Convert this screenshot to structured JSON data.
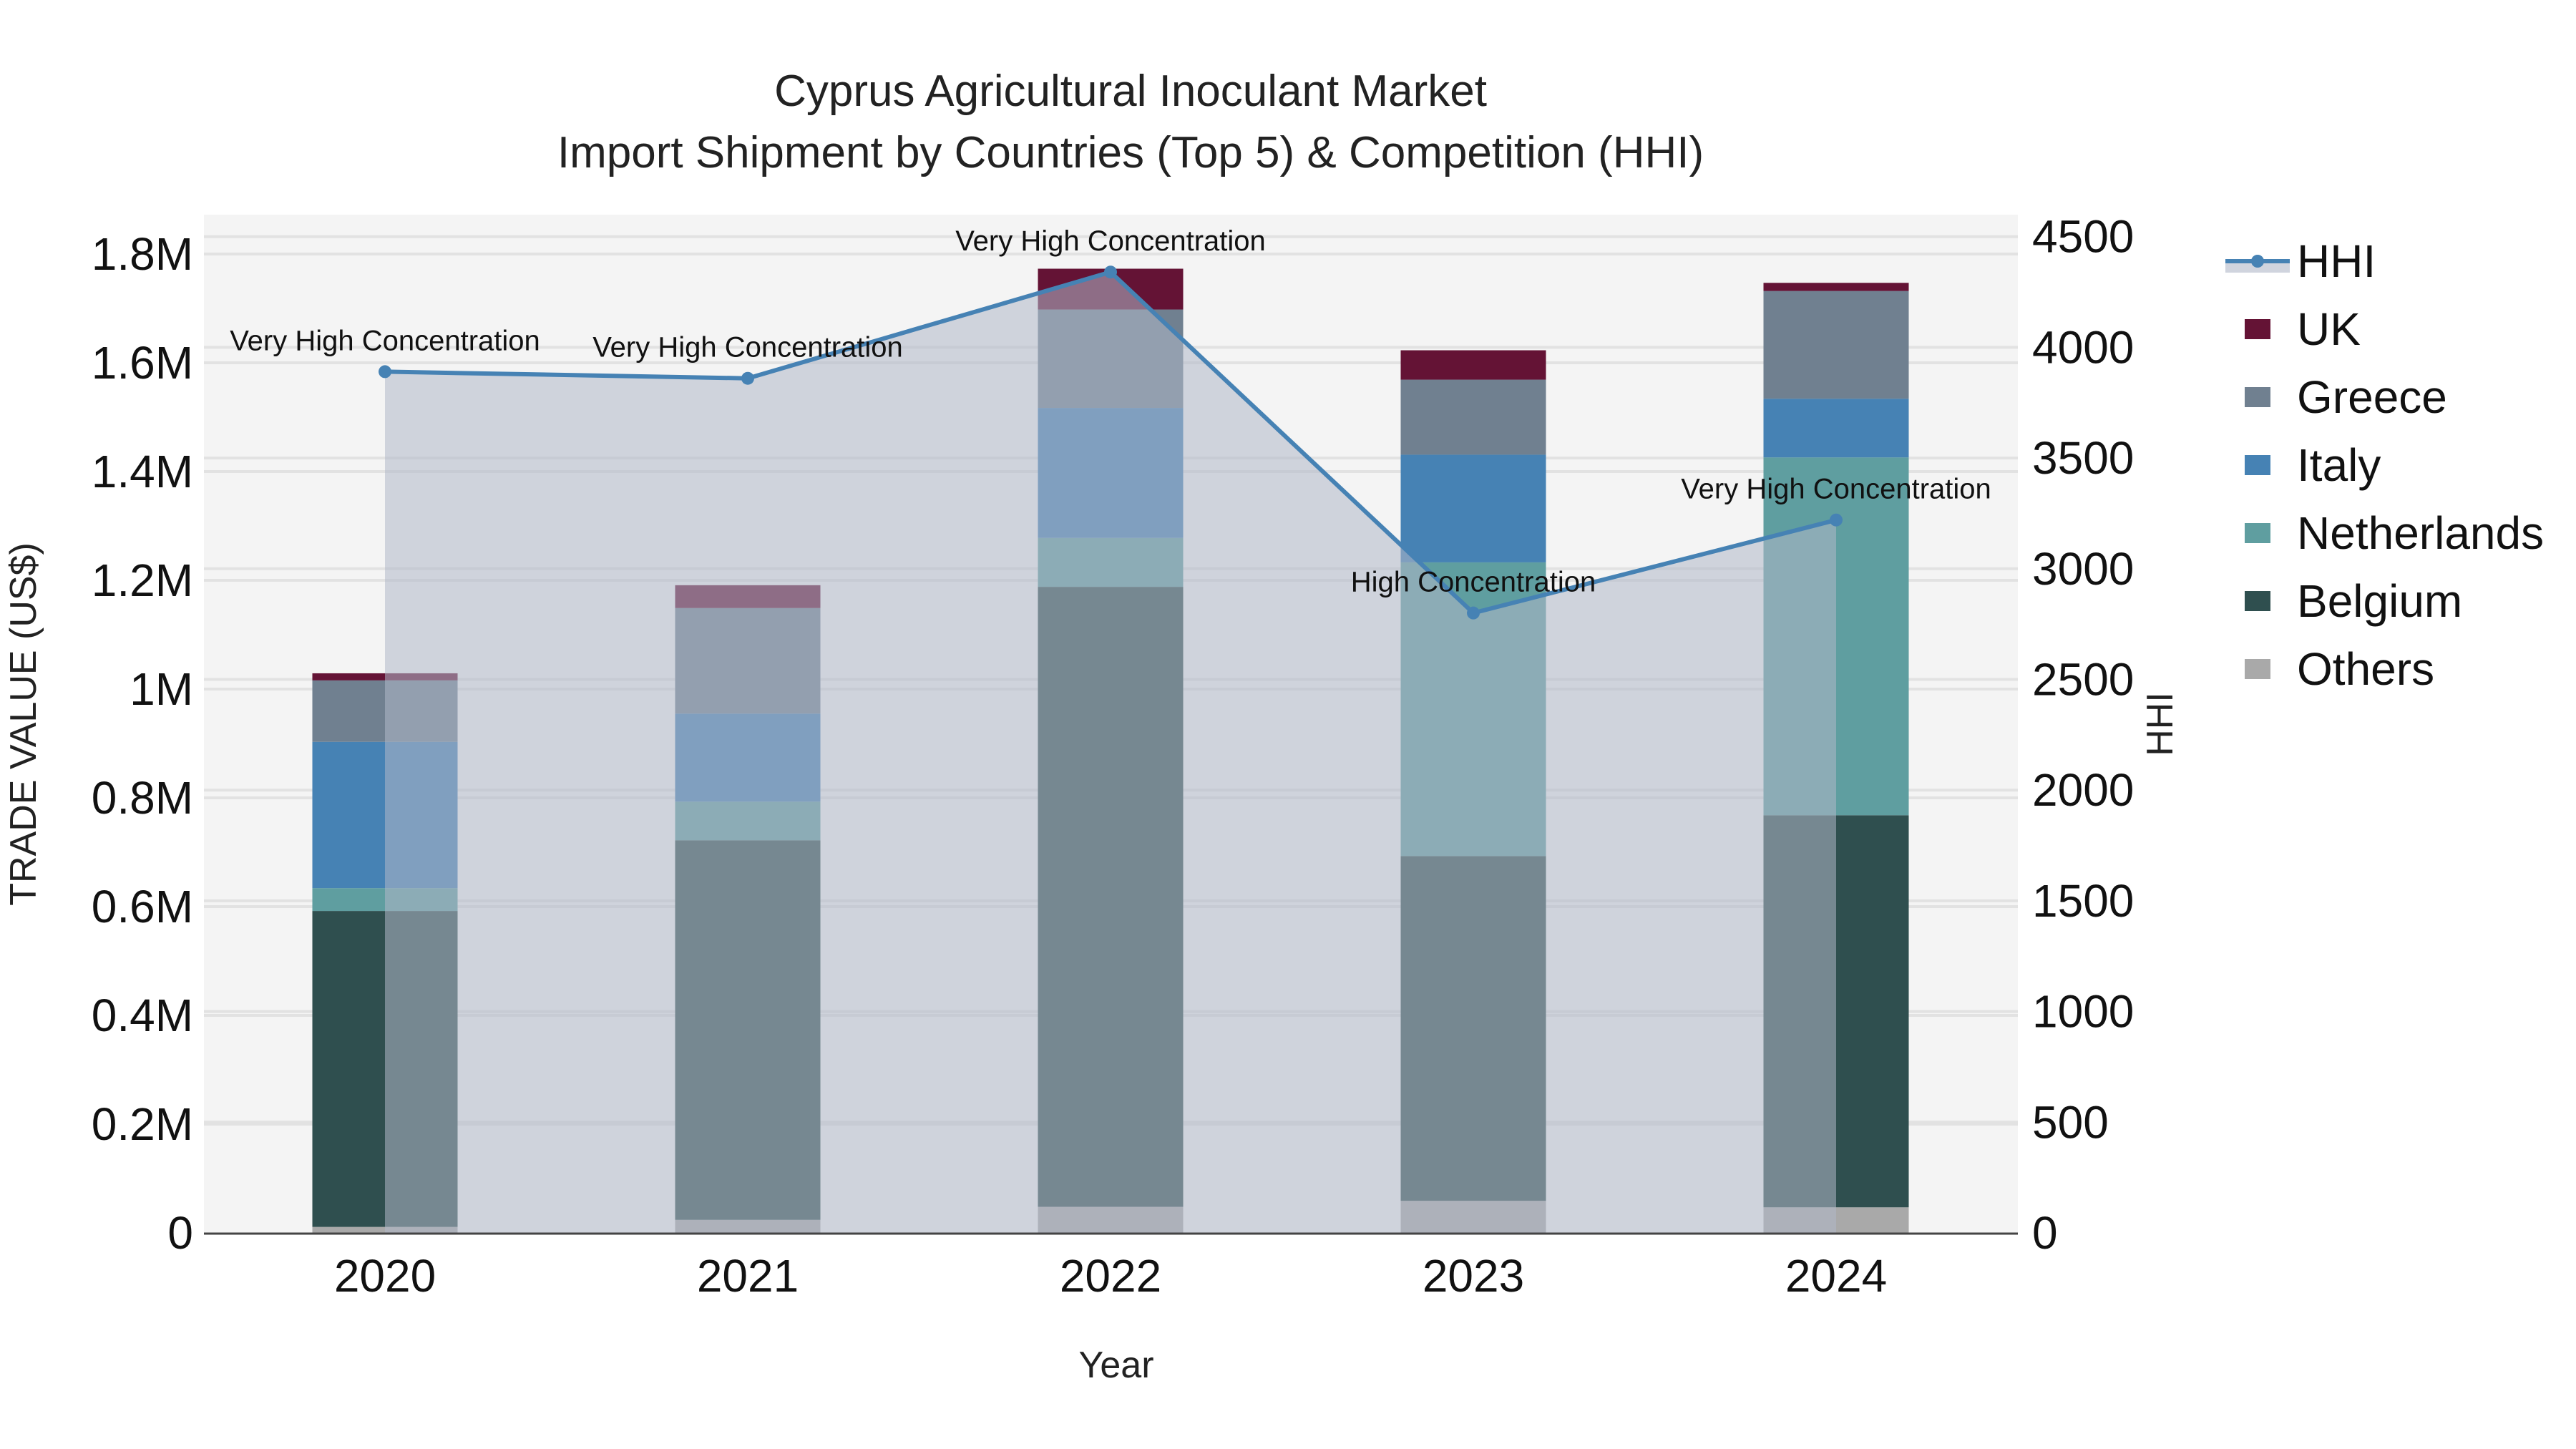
{
  "chart_data": {
    "type": "bar",
    "title": "Cyprus Agricultural Inoculant Market",
    "subtitle": "Import Shipment by Countries (Top 5) & Competition (HHI)",
    "xlabel": "Year",
    "ylabel": "TRADE VALUE (US$)",
    "y2label": "HHI",
    "categories": [
      "2020",
      "2021",
      "2022",
      "2023",
      "2024"
    ],
    "stacked": true,
    "ylim": [
      0,
      1850000
    ],
    "y2lim": [
      0,
      4600
    ],
    "yticks": [
      {
        "value": 0,
        "label": "0"
      },
      {
        "value": 200000,
        "label": "0.2M"
      },
      {
        "value": 400000,
        "label": "0.4M"
      },
      {
        "value": 600000,
        "label": "0.6M"
      },
      {
        "value": 800000,
        "label": "0.8M"
      },
      {
        "value": 1000000,
        "label": "1M"
      },
      {
        "value": 1200000,
        "label": "1.2M"
      },
      {
        "value": 1400000,
        "label": "1.4M"
      },
      {
        "value": 1600000,
        "label": "1.6M"
      },
      {
        "value": 1800000,
        "label": "1.8M"
      }
    ],
    "y2ticks": [
      0,
      500,
      1000,
      1500,
      2000,
      2500,
      3000,
      3500,
      4000,
      4500
    ],
    "series": [
      {
        "name": "Others",
        "color": "#A9A9A9",
        "values": [
          11000,
          24000,
          48000,
          59000,
          47000
        ]
      },
      {
        "name": "Belgium",
        "color": "#2F4F4F",
        "values": [
          581000,
          698000,
          1140000,
          634000,
          721000
        ]
      },
      {
        "name": "Netherlands",
        "color": "#5F9EA0",
        "values": [
          42000,
          71000,
          90000,
          540000,
          658000
        ]
      },
      {
        "name": "Italy",
        "color": "#4682B4",
        "values": [
          269000,
          162000,
          239000,
          198000,
          108000
        ]
      },
      {
        "name": "Greece",
        "color": "#708090",
        "values": [
          113000,
          194000,
          181000,
          138000,
          198000
        ]
      },
      {
        "name": "UK",
        "color": "#641335",
        "values": [
          13000,
          42000,
          75000,
          54000,
          15000
        ]
      }
    ],
    "line_series": {
      "name": "HHI",
      "axis": "y2",
      "color": "#4682B4",
      "fill_color": "#B0B8C8",
      "values": [
        3890,
        3860,
        4340,
        2800,
        3220
      ],
      "annotations": [
        "Very High Concentration",
        "Very High Concentration",
        "Very High Concentration",
        "High Concentration",
        "Very High Concentration"
      ]
    },
    "legend": {
      "position": "right",
      "items": [
        "HHI",
        "UK",
        "Greece",
        "Italy",
        "Netherlands",
        "Belgium",
        "Others"
      ]
    },
    "grid": true,
    "plot_bgcolor": "#F4F4F4"
  }
}
